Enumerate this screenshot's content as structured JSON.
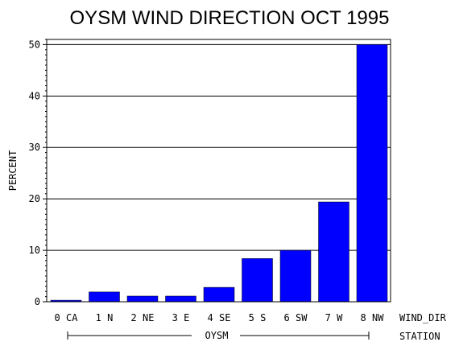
{
  "chart_data": {
    "type": "bar",
    "title": "OYSM WIND DIRECTION OCT 1995",
    "ylabel": "PERCENT",
    "xlabel": "WIND_DIR",
    "group_label": "OYSM",
    "group_axis_label": "STATION",
    "categories": [
      "0 CA",
      "1 N",
      "2 NE",
      "3 E",
      "4 SE",
      "5 S",
      "6 SW",
      "7 W",
      "8 NW"
    ],
    "values": [
      0.3,
      1.9,
      1.1,
      1.1,
      2.8,
      8.4,
      10.0,
      19.4,
      50.0
    ],
    "ylim": [
      0,
      51
    ],
    "yticks": [
      "0",
      "10",
      "20",
      "30",
      "40",
      "50"
    ],
    "grid": true,
    "bar_color": "#0000ff"
  }
}
